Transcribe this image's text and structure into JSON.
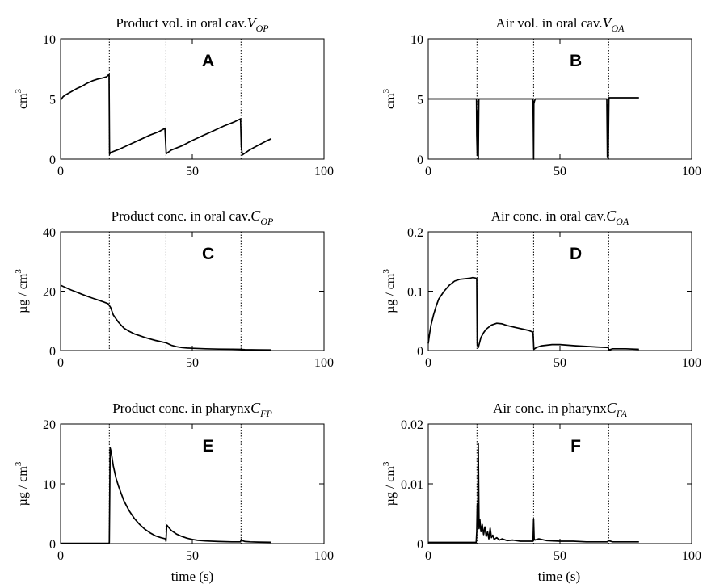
{
  "figure": {
    "xlabel": "time (s)"
  },
  "chart_data": [
    {
      "type": "line",
      "panel_letter": "A",
      "title_main": "Product vol. in oral cav.",
      "title_var": "V",
      "title_sub": "OP",
      "ylabel": "cm",
      "ylabel_sup": "3",
      "xlim": [
        0,
        100
      ],
      "ylim": [
        0,
        10
      ],
      "xticks": [
        "0",
        "50",
        "100"
      ],
      "yticks": [
        "0",
        "5",
        "10"
      ],
      "event_lines_x": [
        18.5,
        40,
        68.5
      ],
      "x": [
        0,
        0.3,
        1,
        2,
        4,
        6,
        8,
        10,
        12,
        14,
        16,
        17.5,
        18.4,
        18.6,
        19,
        22,
        26,
        30,
        34,
        37,
        39.6,
        40.1,
        42,
        46,
        50,
        54,
        58,
        62,
        66,
        68.3,
        68.6,
        69,
        70,
        72,
        75,
        78,
        80
      ],
      "y": [
        4.9,
        5.0,
        5.2,
        5.35,
        5.6,
        5.85,
        6.05,
        6.3,
        6.5,
        6.65,
        6.75,
        6.85,
        7.05,
        0.4,
        0.55,
        0.8,
        1.2,
        1.6,
        2.0,
        2.25,
        2.55,
        0.45,
        0.75,
        1.1,
        1.55,
        1.95,
        2.35,
        2.75,
        3.1,
        3.35,
        1.1,
        0.35,
        0.5,
        0.8,
        1.15,
        1.5,
        1.7
      ]
    },
    {
      "type": "line",
      "panel_letter": "B",
      "title_main": "Air vol. in oral cav.",
      "title_var": "V",
      "title_sub": "OA",
      "ylabel": "cm",
      "ylabel_sup": "3",
      "xlim": [
        0,
        100
      ],
      "ylim": [
        0,
        10
      ],
      "xticks": [
        "0",
        "50",
        "100"
      ],
      "yticks": [
        "0",
        "5",
        "10"
      ],
      "event_lines_x": [
        18.5,
        40,
        68.5
      ],
      "x": [
        0,
        18.3,
        18.4,
        18.6,
        18.8,
        19.0,
        19.2,
        19.4,
        39.8,
        40.0,
        40.1,
        40.3,
        40.6,
        67.8,
        68.0,
        68.1,
        68.3,
        68.6,
        80
      ],
      "y": [
        5,
        5,
        2.0,
        0.3,
        4.0,
        0.0,
        5.0,
        5,
        5,
        0.0,
        4.6,
        4.8,
        5,
        5,
        0.2,
        4.5,
        0.0,
        5.1,
        5.1
      ]
    },
    {
      "type": "line",
      "panel_letter": "C",
      "title_main": "Product conc. in oral cav.",
      "title_var": "C",
      "title_sub": "OP",
      "ylabel": "µg / cm",
      "ylabel_sup": "3",
      "xlim": [
        0,
        100
      ],
      "ylim": [
        0,
        40
      ],
      "xticks": [
        "0",
        "50",
        "100"
      ],
      "yticks": [
        "0",
        "20",
        "40"
      ],
      "event_lines_x": [
        18.5,
        40,
        68.5
      ],
      "x": [
        0,
        2,
        4,
        6,
        8,
        10,
        12,
        14,
        16,
        18,
        19,
        20,
        22,
        24,
        26,
        28,
        30,
        32,
        34,
        36,
        38,
        40,
        42,
        44,
        46,
        48,
        50,
        55,
        60,
        65,
        68,
        70,
        75,
        80
      ],
      "y": [
        22,
        21.2,
        20.4,
        19.7,
        19.0,
        18.3,
        17.7,
        17.1,
        16.5,
        15.8,
        14.5,
        12.0,
        9.5,
        7.6,
        6.5,
        5.6,
        5.0,
        4.4,
        3.9,
        3.4,
        3.0,
        2.6,
        1.8,
        1.3,
        1.0,
        0.85,
        0.75,
        0.6,
        0.5,
        0.45,
        0.4,
        0.3,
        0.25,
        0.22
      ]
    },
    {
      "type": "line",
      "panel_letter": "D",
      "title_main": "Air conc. in oral cav.",
      "title_var": "C",
      "title_sub": "OA",
      "ylabel": "µg / cm",
      "ylabel_sup": "3",
      "xlim": [
        0,
        100
      ],
      "ylim": [
        0,
        0.2
      ],
      "xticks": [
        "0",
        "50",
        "100"
      ],
      "yticks": [
        "0",
        "0.1",
        "0.2"
      ],
      "event_lines_x": [
        18.5,
        40,
        68.5
      ],
      "x": [
        0,
        0.5,
        1,
        2,
        3,
        4,
        6,
        8,
        10,
        12,
        14,
        16,
        17,
        18,
        18.4,
        18.6,
        19,
        20,
        21,
        22,
        24,
        26,
        28,
        30,
        32,
        34,
        36,
        38,
        39.8,
        40.1,
        41,
        43,
        45,
        47,
        50,
        53,
        56,
        60,
        64,
        68.3,
        68.6,
        70,
        75,
        80
      ],
      "y": [
        0.012,
        0.028,
        0.042,
        0.06,
        0.075,
        0.087,
        0.1,
        0.11,
        0.117,
        0.12,
        0.121,
        0.122,
        0.123,
        0.122,
        0.121,
        0.01,
        0.005,
        0.022,
        0.03,
        0.036,
        0.043,
        0.046,
        0.045,
        0.042,
        0.04,
        0.038,
        0.036,
        0.034,
        0.031,
        0.002,
        0.005,
        0.008,
        0.009,
        0.01,
        0.01,
        0.009,
        0.008,
        0.007,
        0.006,
        0.005,
        0.001,
        0.003,
        0.003,
        0.002
      ]
    },
    {
      "type": "line",
      "panel_letter": "E",
      "title_main": "Product conc. in pharynx",
      "title_var": "C",
      "title_sub": "FP",
      "ylabel": "µg / cm",
      "ylabel_sup": "3",
      "xlim": [
        0,
        100
      ],
      "ylim": [
        0,
        20
      ],
      "xticks": [
        "0",
        "50",
        "100"
      ],
      "yticks": [
        "0",
        "10",
        "20"
      ],
      "event_lines_x": [
        18.5,
        40,
        68.5
      ],
      "x": [
        0,
        18.3,
        18.5,
        18.8,
        19.2,
        20,
        21,
        22,
        24,
        26,
        28,
        30,
        32,
        34,
        36,
        38,
        39.8,
        40.0,
        40.3,
        42,
        44,
        46,
        48,
        50,
        52,
        55,
        60,
        65,
        68.3,
        68.6,
        69,
        70,
        72,
        75,
        80
      ],
      "y": [
        0.05,
        0.05,
        0.2,
        16.0,
        15.3,
        13.0,
        11.0,
        9.6,
        7.2,
        5.5,
        4.2,
        3.2,
        2.4,
        1.8,
        1.3,
        1.0,
        0.8,
        0.4,
        3.1,
        2.2,
        1.6,
        1.2,
        0.9,
        0.7,
        0.55,
        0.45,
        0.35,
        0.3,
        0.3,
        0.7,
        0.5,
        0.35,
        0.3,
        0.25,
        0.22
      ]
    },
    {
      "type": "line",
      "panel_letter": "F",
      "title_main": "Air conc. in pharynx",
      "title_var": "C",
      "title_sub": "FA",
      "ylabel": "µg / cm",
      "ylabel_sup": "3",
      "xlim": [
        0,
        100
      ],
      "ylim": [
        0,
        0.02
      ],
      "xticks": [
        "0",
        "50",
        "100"
      ],
      "yticks": [
        "0",
        "0.01",
        "0.02"
      ],
      "event_lines_x": [
        18.5,
        40,
        68.5
      ],
      "x": [
        0,
        18.2,
        18.4,
        18.6,
        18.8,
        19.0,
        19.3,
        19.6,
        20,
        20.5,
        21,
        21.5,
        22,
        22.5,
        23,
        23.5,
        24,
        24.5,
        25,
        26,
        27,
        28,
        30,
        32,
        35,
        38,
        39.8,
        40.0,
        40.2,
        40.5,
        42,
        45,
        50,
        55,
        60,
        68,
        68.5,
        70,
        75,
        80
      ],
      "y": [
        0.0002,
        0.0002,
        0.002,
        0.0065,
        0.0045,
        0.0168,
        0.0025,
        0.004,
        0.002,
        0.0032,
        0.0015,
        0.0028,
        0.0012,
        0.002,
        0.0008,
        0.0026,
        0.001,
        0.0014,
        0.0007,
        0.001,
        0.0006,
        0.0008,
        0.0005,
        0.0006,
        0.0004,
        0.0004,
        0.0004,
        0.0041,
        0.0008,
        0.0006,
        0.0008,
        0.0005,
        0.0004,
        0.0004,
        0.0003,
        0.0003,
        0.0005,
        0.0003,
        0.0003,
        0.0003
      ]
    }
  ]
}
